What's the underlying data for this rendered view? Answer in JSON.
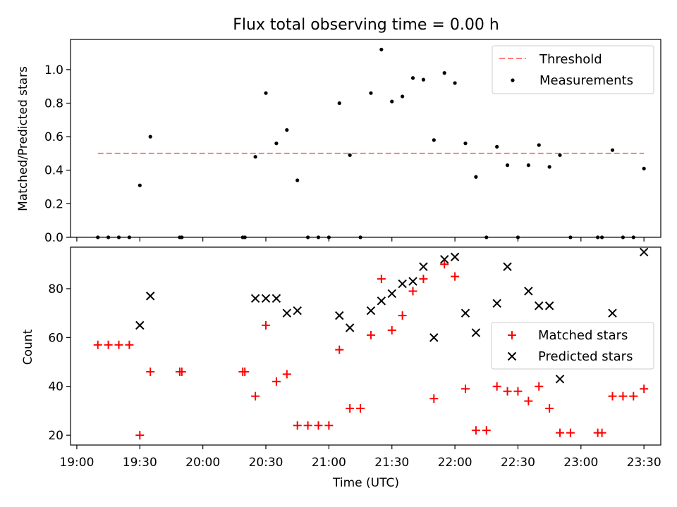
{
  "title": "Flux total observing time = 0.00 h",
  "colors": {
    "threshold": "#ff7f7f",
    "measurements": "#000000",
    "matched": "#ff0000",
    "predicted": "#000000"
  },
  "chart_data": [
    {
      "type": "scatter",
      "ylabel": "Matched/Predicted stars",
      "xlabel": "",
      "ylim": [
        0,
        1.18
      ],
      "yticks": [
        "0.0",
        "0.2",
        "0.4",
        "0.6",
        "0.8",
        "1.0"
      ],
      "xlim": [
        "18:57",
        "23:38"
      ],
      "legend": {
        "placement": "top-right",
        "entries": [
          "Threshold",
          "Measurements"
        ]
      },
      "threshold": {
        "name": "Threshold",
        "value": 0.5,
        "x_start": "19:10",
        "x_end": "23:30",
        "style": "dashed"
      },
      "series": [
        {
          "name": "Measurements",
          "marker": "dot",
          "points": [
            [
              "19:10",
              0.0
            ],
            [
              "19:15",
              0.0
            ],
            [
              "19:20",
              0.0
            ],
            [
              "19:25",
              0.0
            ],
            [
              "19:30",
              0.31
            ],
            [
              "19:35",
              0.6
            ],
            [
              "19:49",
              0.0
            ],
            [
              "19:50",
              0.0
            ],
            [
              "20:19",
              0.0
            ],
            [
              "20:20",
              0.0
            ],
            [
              "20:25",
              0.48
            ],
            [
              "20:30",
              0.86
            ],
            [
              "20:35",
              0.56
            ],
            [
              "20:40",
              0.64
            ],
            [
              "20:45",
              0.34
            ],
            [
              "20:50",
              0.0
            ],
            [
              "20:55",
              0.0
            ],
            [
              "21:00",
              0.0
            ],
            [
              "21:05",
              0.8
            ],
            [
              "21:10",
              0.49
            ],
            [
              "21:15",
              0.0
            ],
            [
              "21:20",
              0.86
            ],
            [
              "21:25",
              1.12
            ],
            [
              "21:30",
              0.81
            ],
            [
              "21:35",
              0.84
            ],
            [
              "21:40",
              0.95
            ],
            [
              "21:45",
              0.94
            ],
            [
              "21:50",
              0.58
            ],
            [
              "21:55",
              0.98
            ],
            [
              "22:00",
              0.92
            ],
            [
              "22:05",
              0.56
            ],
            [
              "22:10",
              0.36
            ],
            [
              "22:15",
              0.0
            ],
            [
              "22:20",
              0.54
            ],
            [
              "22:25",
              0.43
            ],
            [
              "22:30",
              0.0
            ],
            [
              "22:35",
              0.43
            ],
            [
              "22:40",
              0.55
            ],
            [
              "22:45",
              0.42
            ],
            [
              "22:50",
              0.49
            ],
            [
              "22:55",
              0.0
            ],
            [
              "23:08",
              0.0
            ],
            [
              "23:10",
              0.0
            ],
            [
              "23:15",
              0.52
            ],
            [
              "23:20",
              0.0
            ],
            [
              "23:25",
              0.0
            ],
            [
              "23:30",
              0.41
            ]
          ]
        }
      ]
    },
    {
      "type": "scatter",
      "ylabel": "Count",
      "xlabel": "Time (UTC)",
      "ylim": [
        16,
        97
      ],
      "yticks": [
        "20",
        "40",
        "60",
        "80"
      ],
      "xlim": [
        "18:57",
        "23:38"
      ],
      "xticks": [
        "19:00",
        "19:30",
        "20:00",
        "20:30",
        "21:00",
        "21:30",
        "22:00",
        "22:30",
        "23:00",
        "23:30"
      ],
      "legend": {
        "placement": "center-right",
        "entries": [
          "Matched stars",
          "Predicted stars"
        ]
      },
      "series": [
        {
          "name": "Matched stars",
          "marker": "plus",
          "points": [
            [
              "19:10",
              57
            ],
            [
              "19:15",
              57
            ],
            [
              "19:20",
              57
            ],
            [
              "19:25",
              57
            ],
            [
              "19:30",
              20
            ],
            [
              "19:35",
              46
            ],
            [
              "19:49",
              46
            ],
            [
              "19:50",
              46
            ],
            [
              "20:19",
              46
            ],
            [
              "20:20",
              46
            ],
            [
              "20:25",
              36
            ],
            [
              "20:30",
              65
            ],
            [
              "20:35",
              42
            ],
            [
              "20:40",
              45
            ],
            [
              "20:45",
              24
            ],
            [
              "20:50",
              24
            ],
            [
              "20:55",
              24
            ],
            [
              "21:00",
              24
            ],
            [
              "21:05",
              55
            ],
            [
              "21:10",
              31
            ],
            [
              "21:15",
              31
            ],
            [
              "21:20",
              61
            ],
            [
              "21:25",
              84
            ],
            [
              "21:30",
              63
            ],
            [
              "21:35",
              69
            ],
            [
              "21:40",
              79
            ],
            [
              "21:45",
              84
            ],
            [
              "21:50",
              35
            ],
            [
              "21:55",
              90
            ],
            [
              "22:00",
              85
            ],
            [
              "22:05",
              39
            ],
            [
              "22:10",
              22
            ],
            [
              "22:15",
              22
            ],
            [
              "22:20",
              40
            ],
            [
              "22:25",
              38
            ],
            [
              "22:30",
              38
            ],
            [
              "22:35",
              34
            ],
            [
              "22:40",
              40
            ],
            [
              "22:45",
              31
            ],
            [
              "22:50",
              21
            ],
            [
              "22:55",
              21
            ],
            [
              "23:08",
              21
            ],
            [
              "23:10",
              21
            ],
            [
              "23:15",
              36
            ],
            [
              "23:20",
              36
            ],
            [
              "23:25",
              36
            ],
            [
              "23:30",
              39
            ]
          ]
        },
        {
          "name": "Predicted stars",
          "marker": "x",
          "points": [
            [
              "19:30",
              65
            ],
            [
              "19:35",
              77
            ],
            [
              "20:25",
              76
            ],
            [
              "20:30",
              76
            ],
            [
              "20:35",
              76
            ],
            [
              "20:40",
              70
            ],
            [
              "20:45",
              71
            ],
            [
              "21:05",
              69
            ],
            [
              "21:10",
              64
            ],
            [
              "21:20",
              71
            ],
            [
              "21:25",
              75
            ],
            [
              "21:30",
              78
            ],
            [
              "21:35",
              82
            ],
            [
              "21:40",
              83
            ],
            [
              "21:45",
              89
            ],
            [
              "21:50",
              60
            ],
            [
              "21:55",
              92
            ],
            [
              "22:00",
              93
            ],
            [
              "22:05",
              70
            ],
            [
              "22:10",
              62
            ],
            [
              "22:20",
              74
            ],
            [
              "22:25",
              89
            ],
            [
              "22:35",
              79
            ],
            [
              "22:40",
              73
            ],
            [
              "22:45",
              73
            ],
            [
              "22:50",
              43
            ],
            [
              "23:15",
              70
            ],
            [
              "23:30",
              95
            ]
          ]
        }
      ]
    }
  ]
}
